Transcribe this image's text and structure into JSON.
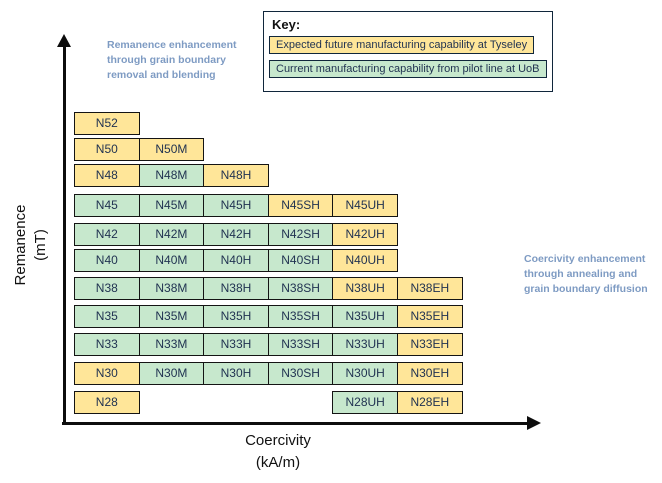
{
  "annotations": {
    "left": "Remanence enhancement\nthrough grain boundary\nremoval and blending",
    "right": "Coercivity enhancement\nthrough annealing and\ngrain boundary diffusion",
    "annotation_color": "#7E9BC3"
  },
  "key": {
    "title": "Key:",
    "items": [
      {
        "label": "Expected future manufacturing capability at Tyseley",
        "status": "future",
        "color": "#FFE699"
      },
      {
        "label": "Current manufacturing capability from pilot line at UoB",
        "status": "current",
        "color": "#C7E8CD"
      }
    ]
  },
  "axes": {
    "y_label": "Remanence\n(mT)",
    "x_label": "Coercivity\n(kA/m)"
  },
  "chart_data": {
    "type": "heatmap",
    "title": "",
    "xlabel": "Coercivity (kA/m)",
    "ylabel": "Remanence (mT)",
    "grid": false,
    "legend_position": "top-right",
    "column_suffixes": [
      "",
      "M",
      "H",
      "SH",
      "UH",
      "EH"
    ],
    "status_colors": {
      "future": "#FFE699",
      "current": "#C7E8CD"
    },
    "status_meaning": {
      "future": "Expected future manufacturing capability at Tyseley",
      "current": "Current manufacturing capability from pilot line at UoB"
    },
    "rows": [
      {
        "grade": "N52",
        "cells": [
          {
            "label": "N52",
            "col": 0,
            "status": "future"
          }
        ]
      },
      {
        "grade": "N50",
        "cells": [
          {
            "label": "N50",
            "col": 0,
            "status": "future"
          },
          {
            "label": "N50M",
            "col": 1,
            "status": "future"
          }
        ]
      },
      {
        "grade": "N48",
        "cells": [
          {
            "label": "N48",
            "col": 0,
            "status": "future"
          },
          {
            "label": "N48M",
            "col": 1,
            "status": "current"
          },
          {
            "label": "N48H",
            "col": 2,
            "status": "future"
          }
        ]
      },
      {
        "grade": "N45",
        "cells": [
          {
            "label": "N45",
            "col": 0,
            "status": "current"
          },
          {
            "label": "N45M",
            "col": 1,
            "status": "current"
          },
          {
            "label": "N45H",
            "col": 2,
            "status": "current"
          },
          {
            "label": "N45SH",
            "col": 3,
            "status": "future"
          },
          {
            "label": "N45UH",
            "col": 4,
            "status": "future"
          }
        ]
      },
      {
        "grade": "N42",
        "cells": [
          {
            "label": "N42",
            "col": 0,
            "status": "current"
          },
          {
            "label": "N42M",
            "col": 1,
            "status": "current"
          },
          {
            "label": "N42H",
            "col": 2,
            "status": "current"
          },
          {
            "label": "N42SH",
            "col": 3,
            "status": "current"
          },
          {
            "label": "N42UH",
            "col": 4,
            "status": "future"
          }
        ]
      },
      {
        "grade": "N40",
        "cells": [
          {
            "label": "N40",
            "col": 0,
            "status": "current"
          },
          {
            "label": "N40M",
            "col": 1,
            "status": "current"
          },
          {
            "label": "N40H",
            "col": 2,
            "status": "current"
          },
          {
            "label": "N40SH",
            "col": 3,
            "status": "current"
          },
          {
            "label": "N40UH",
            "col": 4,
            "status": "future"
          }
        ]
      },
      {
        "grade": "N38",
        "cells": [
          {
            "label": "N38",
            "col": 0,
            "status": "current"
          },
          {
            "label": "N38M",
            "col": 1,
            "status": "current"
          },
          {
            "label": "N38H",
            "col": 2,
            "status": "current"
          },
          {
            "label": "N38SH",
            "col": 3,
            "status": "current"
          },
          {
            "label": "N38UH",
            "col": 4,
            "status": "future"
          },
          {
            "label": "N38EH",
            "col": 5,
            "status": "future"
          }
        ]
      },
      {
        "grade": "N35",
        "cells": [
          {
            "label": "N35",
            "col": 0,
            "status": "current"
          },
          {
            "label": "N35M",
            "col": 1,
            "status": "current"
          },
          {
            "label": "N35H",
            "col": 2,
            "status": "current"
          },
          {
            "label": "N35SH",
            "col": 3,
            "status": "current"
          },
          {
            "label": "N35UH",
            "col": 4,
            "status": "current"
          },
          {
            "label": "N35EH",
            "col": 5,
            "status": "future"
          }
        ]
      },
      {
        "grade": "N33",
        "cells": [
          {
            "label": "N33",
            "col": 0,
            "status": "current"
          },
          {
            "label": "N33M",
            "col": 1,
            "status": "current"
          },
          {
            "label": "N33H",
            "col": 2,
            "status": "current"
          },
          {
            "label": "N33SH",
            "col": 3,
            "status": "current"
          },
          {
            "label": "N33UH",
            "col": 4,
            "status": "current"
          },
          {
            "label": "N33EH",
            "col": 5,
            "status": "future"
          }
        ]
      },
      {
        "grade": "N30",
        "cells": [
          {
            "label": "N30",
            "col": 0,
            "status": "future"
          },
          {
            "label": "N30M",
            "col": 1,
            "status": "current"
          },
          {
            "label": "N30H",
            "col": 2,
            "status": "current"
          },
          {
            "label": "N30SH",
            "col": 3,
            "status": "current"
          },
          {
            "label": "N30UH",
            "col": 4,
            "status": "current"
          },
          {
            "label": "N30EH",
            "col": 5,
            "status": "future"
          }
        ]
      },
      {
        "grade": "N28",
        "cells": [
          {
            "label": "N28",
            "col": 0,
            "status": "future"
          },
          {
            "label": "N28UH",
            "col": 4,
            "status": "current"
          },
          {
            "label": "N28EH",
            "col": 5,
            "status": "future"
          }
        ]
      }
    ]
  }
}
